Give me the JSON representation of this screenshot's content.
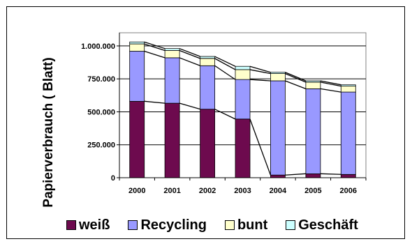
{
  "chart_data": {
    "type": "bar",
    "stacked": true,
    "categories": [
      "2000",
      "2001",
      "2002",
      "2003",
      "2004",
      "2005",
      "2006"
    ],
    "ylabel": "Papierverbrauch ( Blatt)",
    "ylim": [
      0,
      1000000
    ],
    "yticks": [
      0,
      250000,
      500000,
      750000,
      1000000
    ],
    "ytick_labels": [
      "0",
      "250.000",
      "500.000",
      "750.000",
      "1.000.000"
    ],
    "grid": true,
    "connector_lines": true,
    "legend_position": "bottom",
    "series": [
      {
        "name": "weiß",
        "color": "#6d0a4e",
        "values": [
          580000,
          565000,
          520000,
          445000,
          20000,
          30000,
          25000
        ]
      },
      {
        "name": "Recycling",
        "color": "#9999ff",
        "values": [
          380000,
          345000,
          330000,
          300000,
          715000,
          645000,
          625000
        ]
      },
      {
        "name": "bunt",
        "color": "#ffffcc",
        "values": [
          55000,
          55000,
          55000,
          75000,
          55000,
          50000,
          45000
        ]
      },
      {
        "name": "Geschäft",
        "color": "#ccffff",
        "values": [
          15000,
          15000,
          15000,
          25000,
          10000,
          10000,
          10000
        ]
      }
    ]
  }
}
